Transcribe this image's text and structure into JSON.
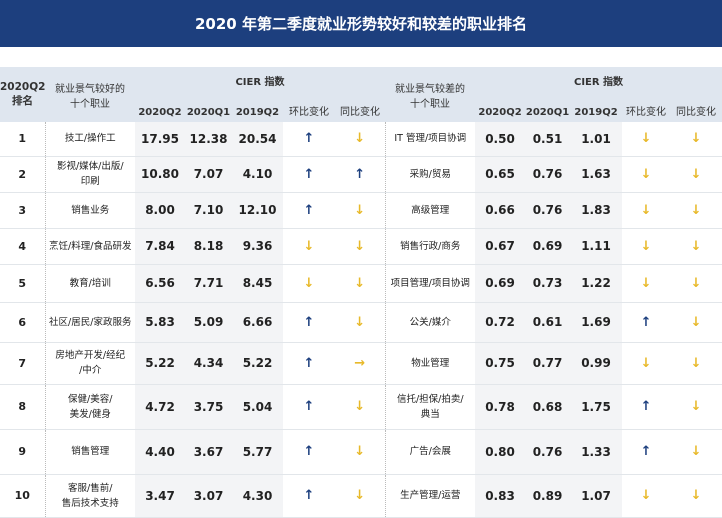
{
  "title": "2020 年第二季度就业形势较好和较差的职业排名",
  "header": {
    "rank": "2020Q2\n排名",
    "good_occ": "就业景气较好的\n十个职业",
    "bad_occ": "就业景气较差的\n十个职业",
    "cier": "CIER 指数",
    "cols": [
      "2020Q2",
      "2020Q1",
      "2019Q2",
      "环比变化",
      "同比变化"
    ]
  },
  "colors": {
    "title_bg": "#1d3f7e",
    "up": "#1d3f7e",
    "down": "#e8b92a"
  },
  "rows": [
    {
      "rank": "1",
      "good": "技工/操作工",
      "g": [
        "17.95",
        "12.38",
        "20.54"
      ],
      "ga": [
        "up",
        "down"
      ],
      "bad": "IT 管理/项目协调",
      "b": [
        "0.50",
        "0.51",
        "1.01"
      ],
      "ba": [
        "down",
        "down"
      ]
    },
    {
      "rank": "2",
      "good": "影视/媒体/出版/\n印刷",
      "g": [
        "10.80",
        "7.07",
        "4.10"
      ],
      "ga": [
        "up",
        "up"
      ],
      "bad": "采购/贸易",
      "b": [
        "0.65",
        "0.76",
        "1.63"
      ],
      "ba": [
        "down",
        "down"
      ]
    },
    {
      "rank": "3",
      "good": "销售业务",
      "g": [
        "8.00",
        "7.10",
        "12.10"
      ],
      "ga": [
        "up",
        "down"
      ],
      "bad": "高级管理",
      "b": [
        "0.66",
        "0.76",
        "1.83"
      ],
      "ba": [
        "down",
        "down"
      ]
    },
    {
      "rank": "4",
      "good": "烹饪/料理/食品研发",
      "g": [
        "7.84",
        "8.18",
        "9.36"
      ],
      "ga": [
        "down",
        "down"
      ],
      "bad": "销售行政/商务",
      "b": [
        "0.67",
        "0.69",
        "1.11"
      ],
      "ba": [
        "down",
        "down"
      ]
    },
    {
      "rank": "5",
      "good": "教育/培训",
      "g": [
        "6.56",
        "7.71",
        "8.45"
      ],
      "ga": [
        "down",
        "down"
      ],
      "bad": "项目管理/项目协调",
      "b": [
        "0.69",
        "0.73",
        "1.22"
      ],
      "ba": [
        "down",
        "down"
      ]
    },
    {
      "rank": "6",
      "good": "社区/居民/家政服务",
      "g": [
        "5.83",
        "5.09",
        "6.66"
      ],
      "ga": [
        "up",
        "down"
      ],
      "bad": "公关/媒介",
      "b": [
        "0.72",
        "0.61",
        "1.69"
      ],
      "ba": [
        "up",
        "down"
      ]
    },
    {
      "rank": "7",
      "good": "房地产开发/经纪\n/中介",
      "g": [
        "5.22",
        "4.34",
        "5.22"
      ],
      "ga": [
        "up",
        "right"
      ],
      "bad": "物业管理",
      "b": [
        "0.75",
        "0.77",
        "0.99"
      ],
      "ba": [
        "down",
        "down"
      ]
    },
    {
      "rank": "8",
      "good": "保健/美容/\n美发/健身",
      "g": [
        "4.72",
        "3.75",
        "5.04"
      ],
      "ga": [
        "up",
        "down"
      ],
      "bad": "信托/担保/拍卖/\n典当",
      "b": [
        "0.78",
        "0.68",
        "1.75"
      ],
      "ba": [
        "up",
        "down"
      ]
    },
    {
      "rank": "9",
      "good": "销售管理",
      "g": [
        "4.40",
        "3.67",
        "5.77"
      ],
      "ga": [
        "up",
        "down"
      ],
      "bad": "广告/会展",
      "b": [
        "0.80",
        "0.76",
        "1.33"
      ],
      "ba": [
        "up",
        "down"
      ]
    },
    {
      "rank": "10",
      "good": "客服/售前/\n售后技术支持",
      "g": [
        "3.47",
        "3.07",
        "4.30"
      ],
      "ga": [
        "up",
        "down"
      ],
      "bad": "生产管理/运营",
      "b": [
        "0.83",
        "0.89",
        "1.07"
      ],
      "ba": [
        "down",
        "down"
      ]
    }
  ]
}
